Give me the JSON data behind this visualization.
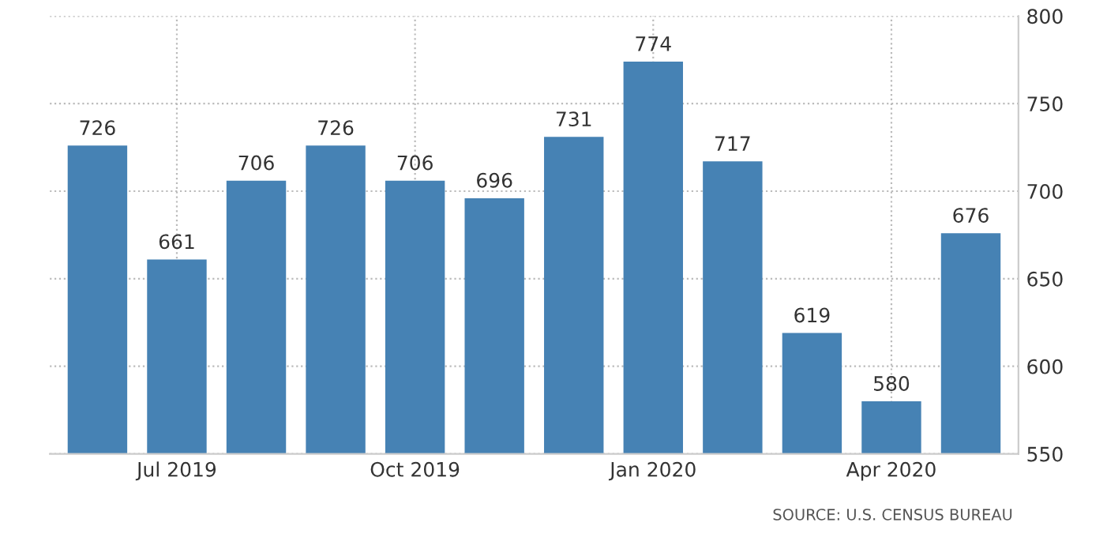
{
  "chart_data": {
    "type": "bar",
    "categories": [
      null,
      "Jul 2019",
      null,
      null,
      "Oct 2019",
      null,
      null,
      "Jan 2020",
      null,
      null,
      "Apr 2020",
      null
    ],
    "values": [
      726,
      661,
      706,
      726,
      706,
      696,
      731,
      774,
      717,
      619,
      580,
      676
    ],
    "color": "#4682b4",
    "ylim": [
      550,
      800
    ],
    "yticks": [
      550,
      600,
      650,
      700,
      750,
      800
    ],
    "grid": true,
    "data_labels": true,
    "annotations": [
      "SOURCE: U.S. CENSUS BUREAU"
    ]
  }
}
